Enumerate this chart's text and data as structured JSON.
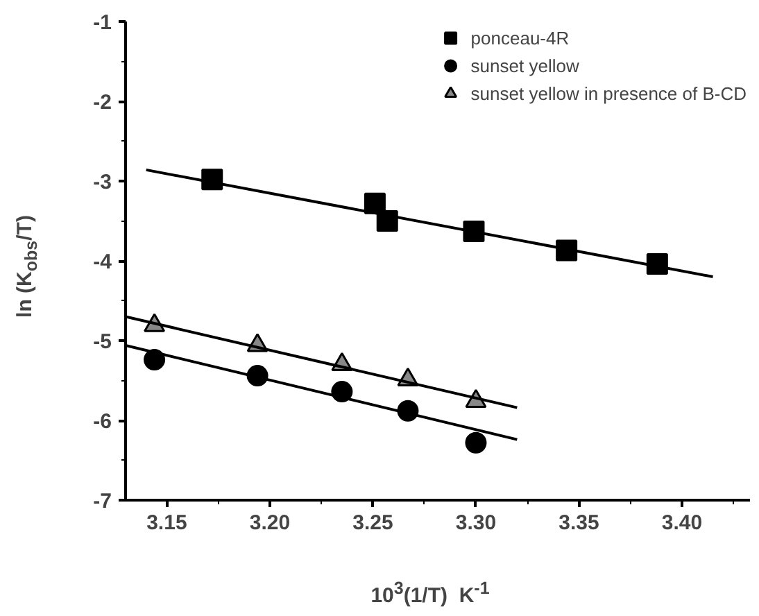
{
  "chart_data": {
    "type": "scatter",
    "xlabel": "10$^{3}$(1/T)  K$^{-1}$",
    "ylabel": "ln (K$_{obs}$/T)",
    "xlim": [
      3.13,
      3.433
    ],
    "xticks": [
      3.15,
      {
        "value": 3.2,
        "label": "3.20"
      },
      3.25,
      {
        "value": 3.3,
        "label": "3.30"
      },
      3.35,
      {
        "value": 3.4,
        "label": "3.40"
      }
    ],
    "ylim": [
      -7,
      -1
    ],
    "yticks": [
      -7,
      -6,
      -5,
      -4,
      -3,
      -2,
      -1
    ],
    "grid": false,
    "legend": "top right",
    "series": [
      {
        "name": "ponceau-4R",
        "marker": "square",
        "color": "#000000",
        "x": [
          3.172,
          3.251,
          3.257,
          3.299,
          3.344,
          3.388
        ],
        "values": [
          -2.98,
          -3.28,
          -3.5,
          -3.63,
          -3.87,
          -4.04
        ]
      },
      {
        "name": "sunset yellow",
        "marker": "circle",
        "color": "#000000",
        "x": [
          3.144,
          3.194,
          3.235,
          3.267,
          3.3
        ],
        "values": [
          -5.24,
          -5.44,
          -5.64,
          -5.88,
          -6.28
        ]
      },
      {
        "name": "sunset yellow in presence of B-CD",
        "marker": "triangle",
        "color": "#888888",
        "x": [
          3.144,
          3.194,
          3.235,
          3.267,
          3.3
        ],
        "values": [
          -4.81,
          -5.06,
          -5.3,
          -5.49,
          -5.76
        ]
      },
      {
        "type": "line",
        "color": "#000000",
        "x": [
          3.14,
          3.415
        ],
        "values": [
          -2.86,
          -4.2
        ]
      },
      {
        "type": "line",
        "color": "#000000",
        "x": [
          3.13,
          3.32
        ],
        "values": [
          -5.06,
          -6.24
        ]
      },
      {
        "type": "line",
        "color": "#000000",
        "x": [
          3.13,
          3.32
        ],
        "values": [
          -4.7,
          -5.84
        ]
      }
    ]
  }
}
